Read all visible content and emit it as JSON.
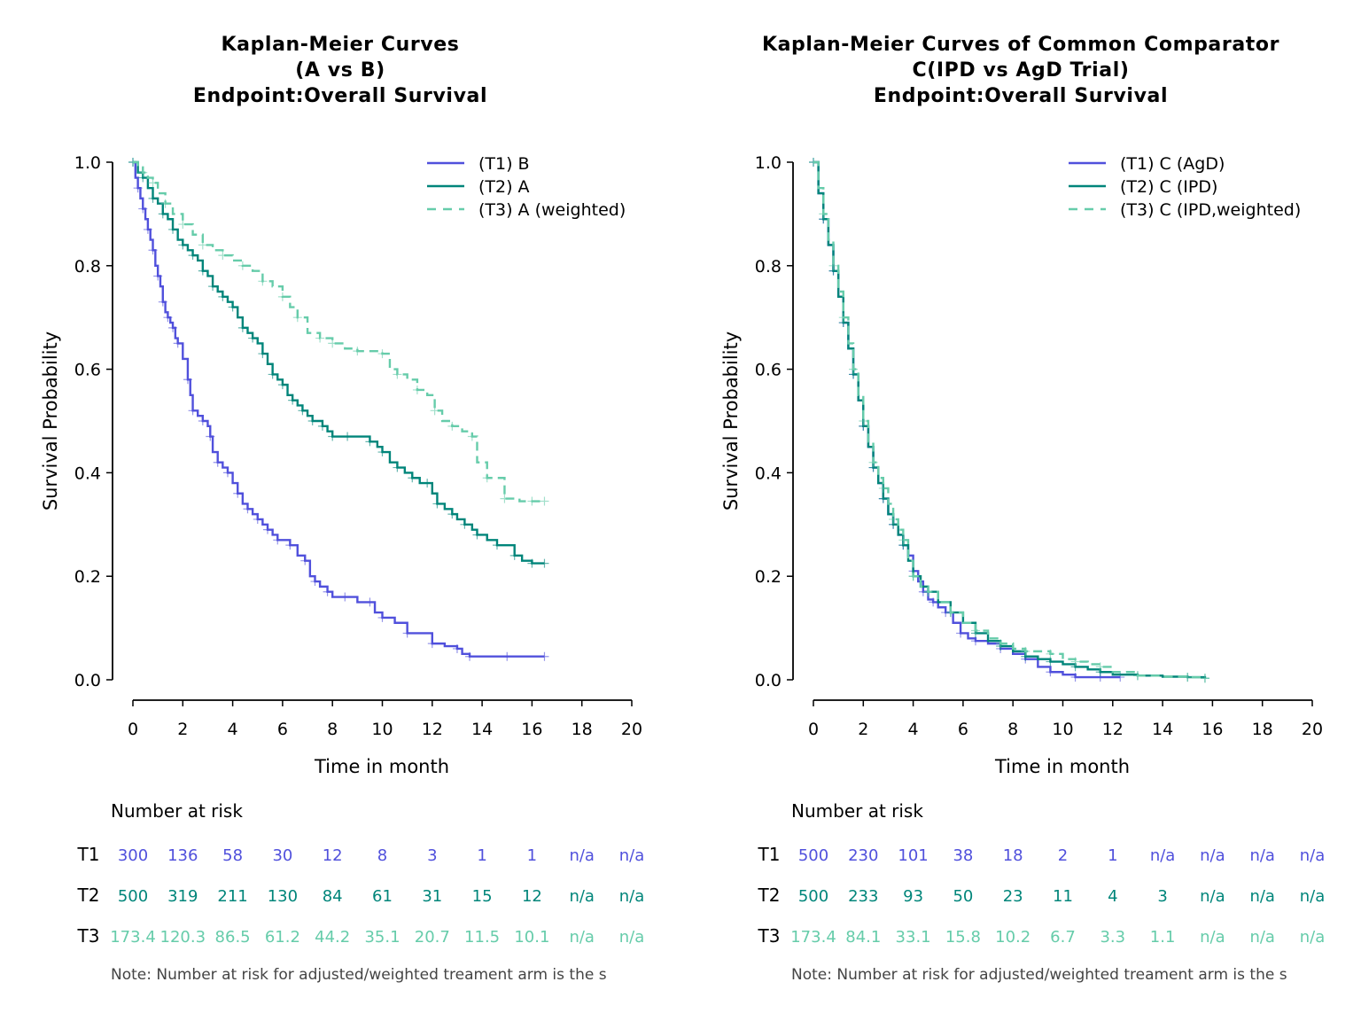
{
  "colors": {
    "t1": "#5050dc",
    "t2": "#00857a",
    "t3": "#66ccaa"
  },
  "chart_data": [
    {
      "type": "line",
      "title": [
        "Kaplan-Meier Curves",
        "(A vs B)",
        "Endpoint:Overall Survival"
      ],
      "xlabel": "Time in month",
      "ylabel": "Survival Probability",
      "xlim": [
        0,
        20
      ],
      "ylim": [
        0,
        1
      ],
      "xticks": [
        "0",
        "2",
        "4",
        "6",
        "8",
        "10",
        "12",
        "14",
        "16",
        "18",
        "20"
      ],
      "yticks": [
        "0.0",
        "0.2",
        "0.4",
        "0.6",
        "0.8",
        "1.0"
      ],
      "legend_position": "top-right",
      "series": [
        {
          "name": "(T1) B",
          "color_key": "t1",
          "dash": false,
          "x": [
            0,
            0.1,
            0.2,
            0.3,
            0.4,
            0.5,
            0.6,
            0.7,
            0.8,
            0.9,
            1.0,
            1.1,
            1.2,
            1.3,
            1.4,
            1.5,
            1.6,
            1.7,
            1.8,
            2.0,
            2.2,
            2.3,
            2.4,
            2.6,
            2.8,
            3.0,
            3.1,
            3.2,
            3.4,
            3.6,
            3.8,
            4.0,
            4.2,
            4.4,
            4.6,
            4.8,
            5.0,
            5.2,
            5.4,
            5.6,
            5.8,
            6.0,
            6.3,
            6.6,
            6.9,
            7.1,
            7.3,
            7.5,
            7.8,
            8.0,
            8.5,
            9.0,
            9.5,
            9.7,
            10.0,
            10.5,
            11.0,
            11.5,
            12.0,
            12.5,
            13.0,
            13.2,
            13.5,
            14.0,
            15.0,
            16.0,
            16.5
          ],
          "y": [
            1.0,
            0.97,
            0.95,
            0.93,
            0.91,
            0.89,
            0.87,
            0.85,
            0.83,
            0.8,
            0.78,
            0.76,
            0.73,
            0.71,
            0.7,
            0.69,
            0.68,
            0.66,
            0.65,
            0.62,
            0.58,
            0.55,
            0.52,
            0.51,
            0.5,
            0.49,
            0.47,
            0.44,
            0.42,
            0.41,
            0.4,
            0.38,
            0.36,
            0.34,
            0.33,
            0.32,
            0.31,
            0.3,
            0.29,
            0.28,
            0.27,
            0.27,
            0.26,
            0.24,
            0.23,
            0.2,
            0.19,
            0.18,
            0.17,
            0.16,
            0.16,
            0.15,
            0.15,
            0.13,
            0.12,
            0.11,
            0.09,
            0.09,
            0.07,
            0.065,
            0.06,
            0.05,
            0.045,
            0.045,
            0.045,
            0.045,
            0.045
          ]
        },
        {
          "name": "(T2) A",
          "color_key": "t2",
          "dash": false,
          "x": [
            0,
            0.2,
            0.4,
            0.6,
            0.8,
            1.0,
            1.2,
            1.4,
            1.6,
            1.8,
            2.0,
            2.2,
            2.4,
            2.6,
            2.8,
            3.0,
            3.2,
            3.4,
            3.6,
            3.8,
            4.0,
            4.2,
            4.4,
            4.6,
            4.8,
            5.0,
            5.2,
            5.4,
            5.6,
            5.8,
            6.0,
            6.2,
            6.4,
            6.6,
            6.8,
            7.0,
            7.2,
            7.4,
            7.6,
            7.8,
            8.0,
            8.3,
            8.6,
            9.0,
            9.5,
            9.8,
            10.0,
            10.3,
            10.6,
            10.9,
            11.2,
            11.5,
            11.8,
            12.0,
            12.2,
            12.5,
            12.8,
            13.0,
            13.3,
            13.6,
            13.8,
            14.2,
            14.6,
            15.0,
            15.3,
            15.6,
            16.0,
            16.5
          ],
          "y": [
            1.0,
            0.98,
            0.97,
            0.95,
            0.93,
            0.92,
            0.9,
            0.89,
            0.87,
            0.85,
            0.84,
            0.83,
            0.82,
            0.81,
            0.79,
            0.78,
            0.76,
            0.75,
            0.74,
            0.73,
            0.72,
            0.7,
            0.68,
            0.67,
            0.66,
            0.65,
            0.63,
            0.61,
            0.59,
            0.58,
            0.57,
            0.55,
            0.54,
            0.53,
            0.52,
            0.51,
            0.5,
            0.5,
            0.49,
            0.48,
            0.47,
            0.47,
            0.47,
            0.47,
            0.46,
            0.45,
            0.44,
            0.42,
            0.41,
            0.4,
            0.39,
            0.38,
            0.38,
            0.36,
            0.34,
            0.33,
            0.32,
            0.31,
            0.3,
            0.29,
            0.28,
            0.27,
            0.26,
            0.26,
            0.24,
            0.23,
            0.225,
            0.225
          ]
        },
        {
          "name": "(T3) A (weighted)",
          "color_key": "t3",
          "dash": true,
          "x": [
            0,
            0.2,
            0.4,
            0.6,
            0.8,
            1.0,
            1.3,
            1.6,
            2.0,
            2.4,
            2.8,
            3.2,
            3.6,
            4.0,
            4.4,
            4.8,
            5.2,
            5.6,
            6.0,
            6.3,
            6.6,
            7.0,
            7.5,
            7.8,
            8.0,
            8.5,
            9.0,
            9.5,
            10.0,
            10.3,
            10.6,
            11.0,
            11.4,
            11.8,
            12.1,
            12.4,
            12.8,
            13.2,
            13.6,
            13.8,
            14.2,
            14.6,
            14.9,
            15.5,
            16.0,
            16.5
          ],
          "y": [
            1.0,
            0.99,
            0.98,
            0.97,
            0.96,
            0.94,
            0.92,
            0.9,
            0.88,
            0.86,
            0.84,
            0.83,
            0.82,
            0.81,
            0.8,
            0.79,
            0.77,
            0.76,
            0.74,
            0.72,
            0.7,
            0.67,
            0.66,
            0.66,
            0.65,
            0.64,
            0.635,
            0.635,
            0.63,
            0.6,
            0.59,
            0.58,
            0.56,
            0.55,
            0.52,
            0.5,
            0.49,
            0.48,
            0.47,
            0.42,
            0.39,
            0.39,
            0.35,
            0.345,
            0.345,
            0.345
          ]
        }
      ],
      "risk_table": {
        "title": "Number at risk",
        "rows": [
          {
            "label": "T1",
            "color_key": "t1",
            "values": [
              "300",
              "136",
              "58",
              "30",
              "12",
              "8",
              "3",
              "1",
              "1",
              "n/a",
              "n/a"
            ]
          },
          {
            "label": "T2",
            "color_key": "t2",
            "values": [
              "500",
              "319",
              "211",
              "130",
              "84",
              "61",
              "31",
              "15",
              "12",
              "n/a",
              "n/a"
            ]
          },
          {
            "label": "T3",
            "color_key": "t3",
            "values": [
              "173.4",
              "120.3",
              "86.5",
              "61.2",
              "44.2",
              "35.1",
              "20.7",
              "11.5",
              "10.1",
              "n/a",
              "n/a"
            ]
          }
        ],
        "note": "Note: Number at risk for adjusted/weighted treament arm is the s"
      }
    },
    {
      "type": "line",
      "title": [
        "Kaplan-Meier Curves of Common Comparator",
        "C(IPD vs AgD Trial)",
        "Endpoint:Overall Survival"
      ],
      "xlabel": "Time in month",
      "ylabel": "Survival Probability",
      "xlim": [
        0,
        20
      ],
      "ylim": [
        0,
        1
      ],
      "xticks": [
        "0",
        "2",
        "4",
        "6",
        "8",
        "10",
        "12",
        "14",
        "16",
        "18",
        "20"
      ],
      "yticks": [
        "0.0",
        "0.2",
        "0.4",
        "0.6",
        "0.8",
        "1.0"
      ],
      "legend_position": "top-right",
      "series": [
        {
          "name": "(T1) C (AgD)",
          "color_key": "t1",
          "dash": false,
          "x": [
            0,
            0.2,
            0.4,
            0.6,
            0.8,
            1.0,
            1.2,
            1.4,
            1.6,
            1.8,
            2.0,
            2.2,
            2.4,
            2.6,
            2.8,
            3.0,
            3.2,
            3.4,
            3.6,
            3.8,
            4.0,
            4.2,
            4.4,
            4.6,
            4.8,
            5.0,
            5.3,
            5.6,
            5.9,
            6.2,
            6.5,
            7.0,
            7.5,
            8.0,
            8.5,
            9.0,
            9.5,
            10.0,
            10.5,
            11.0,
            11.5,
            12.0,
            12.3
          ],
          "y": [
            1.0,
            0.94,
            0.89,
            0.84,
            0.79,
            0.74,
            0.69,
            0.64,
            0.59,
            0.54,
            0.49,
            0.45,
            0.41,
            0.38,
            0.35,
            0.32,
            0.3,
            0.28,
            0.26,
            0.24,
            0.21,
            0.19,
            0.17,
            0.155,
            0.15,
            0.14,
            0.13,
            0.11,
            0.09,
            0.08,
            0.075,
            0.07,
            0.06,
            0.05,
            0.04,
            0.025,
            0.015,
            0.01,
            0.005,
            0.005,
            0.005,
            0.005,
            0.005
          ]
        },
        {
          "name": "(T2) C (IPD)",
          "color_key": "t2",
          "dash": false,
          "x": [
            0,
            0.2,
            0.4,
            0.6,
            0.8,
            1.0,
            1.2,
            1.4,
            1.6,
            1.8,
            2.0,
            2.2,
            2.4,
            2.6,
            2.8,
            3.0,
            3.2,
            3.4,
            3.6,
            3.8,
            4.0,
            4.3,
            4.6,
            5.0,
            5.5,
            6.0,
            6.5,
            7.0,
            7.5,
            8.0,
            8.5,
            9.0,
            9.5,
            10.0,
            10.5,
            11.0,
            11.5,
            12.0,
            13.0,
            14.0,
            15.0,
            15.7
          ],
          "y": [
            1.0,
            0.94,
            0.89,
            0.84,
            0.79,
            0.74,
            0.69,
            0.64,
            0.59,
            0.54,
            0.49,
            0.45,
            0.41,
            0.38,
            0.35,
            0.32,
            0.3,
            0.28,
            0.26,
            0.23,
            0.2,
            0.18,
            0.17,
            0.15,
            0.13,
            0.11,
            0.09,
            0.075,
            0.065,
            0.055,
            0.045,
            0.04,
            0.035,
            0.03,
            0.025,
            0.02,
            0.015,
            0.01,
            0.008,
            0.006,
            0.005,
            0.003
          ]
        },
        {
          "name": "(T3) C (IPD,weighted)",
          "color_key": "t3",
          "dash": true,
          "x": [
            0,
            0.2,
            0.4,
            0.6,
            0.8,
            1.0,
            1.2,
            1.4,
            1.6,
            1.8,
            2.0,
            2.2,
            2.4,
            2.6,
            2.8,
            3.0,
            3.2,
            3.4,
            3.6,
            3.8,
            4.0,
            4.3,
            4.6,
            5.0,
            5.5,
            6.0,
            6.5,
            7.0,
            7.5,
            8.0,
            8.5,
            9.0,
            9.5,
            10.0,
            10.5,
            11.0,
            11.5,
            12.0,
            13.0,
            14.0,
            15.0,
            15.7
          ],
          "y": [
            1.0,
            0.95,
            0.9,
            0.85,
            0.8,
            0.75,
            0.7,
            0.65,
            0.6,
            0.55,
            0.5,
            0.46,
            0.42,
            0.39,
            0.37,
            0.34,
            0.31,
            0.29,
            0.27,
            0.23,
            0.2,
            0.18,
            0.17,
            0.15,
            0.13,
            0.11,
            0.095,
            0.08,
            0.07,
            0.06,
            0.055,
            0.055,
            0.05,
            0.04,
            0.035,
            0.03,
            0.025,
            0.015,
            0.008,
            0.006,
            0.005,
            0.003
          ]
        }
      ],
      "risk_table": {
        "title": "Number at risk",
        "rows": [
          {
            "label": "T1",
            "color_key": "t1",
            "values": [
              "500",
              "230",
              "101",
              "38",
              "18",
              "2",
              "1",
              "n/a",
              "n/a",
              "n/a",
              "n/a"
            ]
          },
          {
            "label": "T2",
            "color_key": "t2",
            "values": [
              "500",
              "233",
              "93",
              "50",
              "23",
              "11",
              "4",
              "3",
              "n/a",
              "n/a",
              "n/a"
            ]
          },
          {
            "label": "T3",
            "color_key": "t3",
            "values": [
              "173.4",
              "84.1",
              "33.1",
              "15.8",
              "10.2",
              "6.7",
              "3.3",
              "1.1",
              "n/a",
              "n/a",
              "n/a"
            ]
          }
        ],
        "note": "Note: Number at risk for adjusted/weighted treament arm is the s"
      }
    }
  ]
}
